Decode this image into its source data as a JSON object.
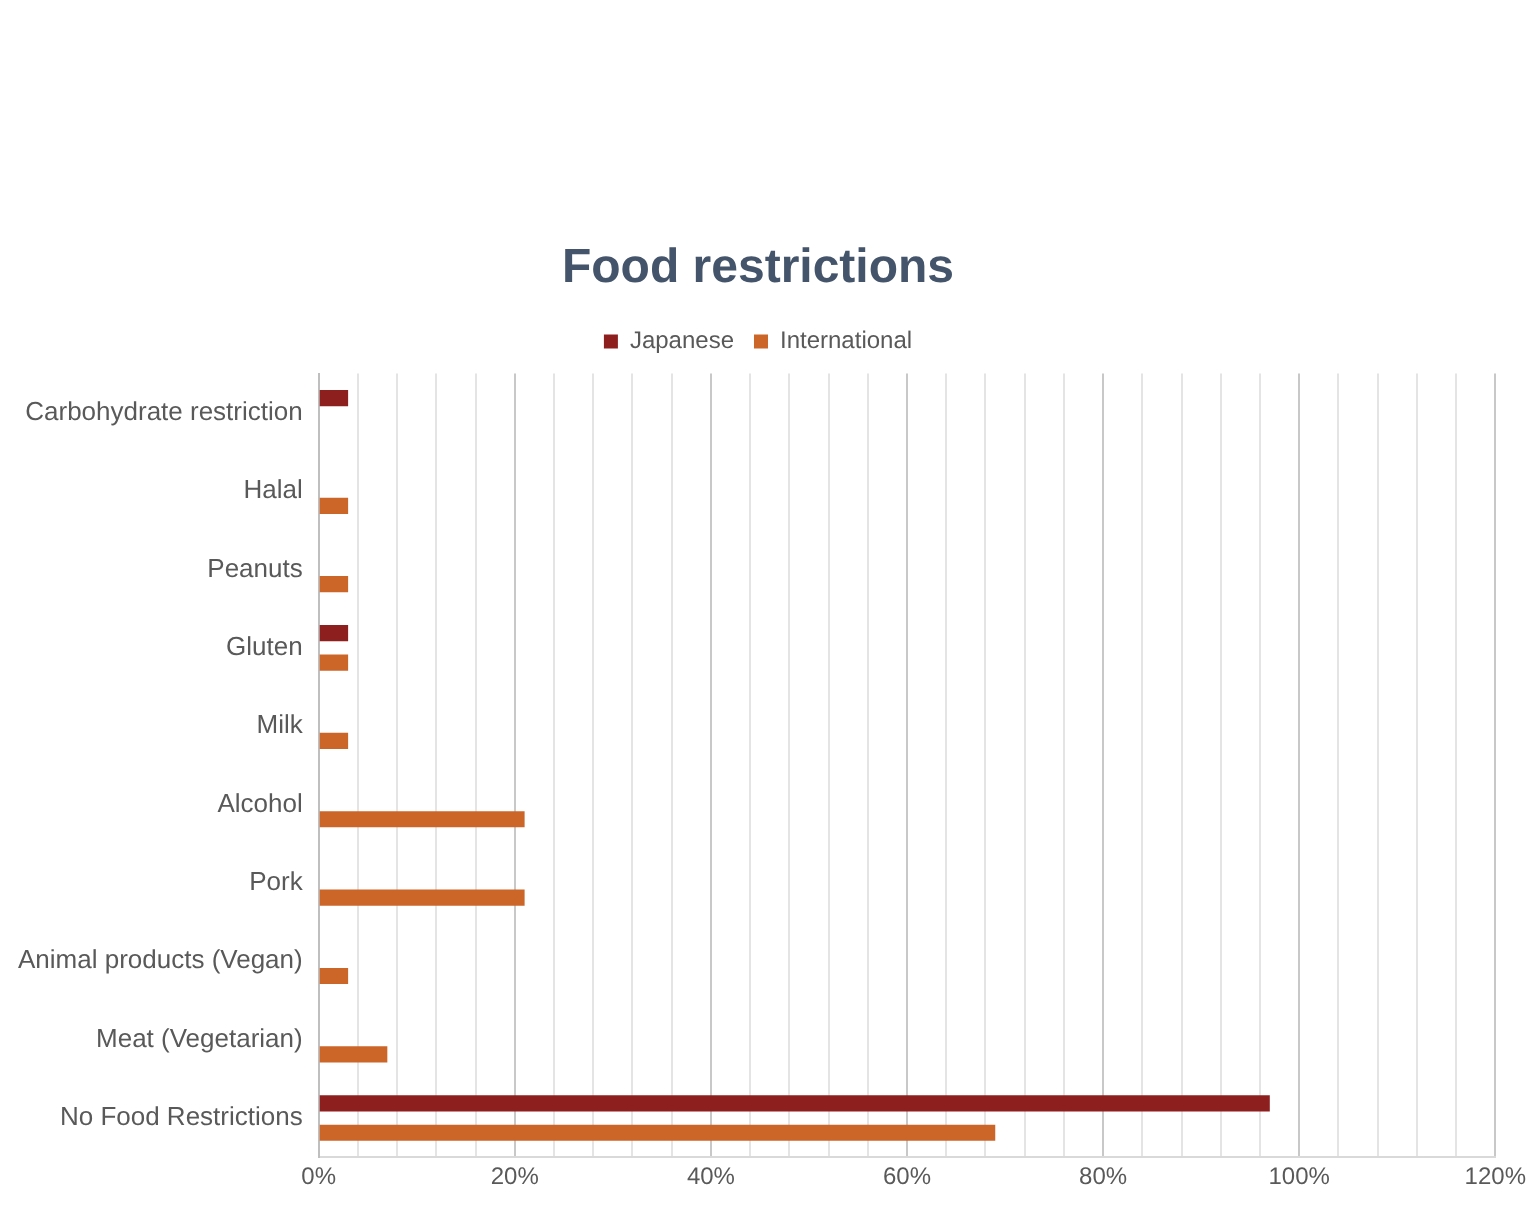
{
  "chart_data": {
    "type": "bar",
    "orientation": "horizontal",
    "title": "Food restrictions",
    "categories": [
      "Carbohydrate restriction",
      "Halal",
      "Peanuts",
      "Gluten",
      "Milk",
      "Alcohol",
      "Pork",
      "Animal products (Vegan)",
      "Meat (Vegetarian)",
      "No Food Restrictions"
    ],
    "series": [
      {
        "name": "Japanese",
        "color": "#8e1f1f",
        "values": [
          3,
          null,
          null,
          3,
          null,
          null,
          null,
          null,
          null,
          97
        ]
      },
      {
        "name": "International",
        "color": "#cc6628",
        "values": [
          null,
          3,
          3,
          3,
          3,
          21,
          21,
          3,
          7,
          69
        ]
      }
    ],
    "xlim": [
      0,
      120
    ],
    "xticks": [
      {
        "value": 0,
        "label": "0%"
      },
      {
        "value": 4,
        "label": null
      },
      {
        "value": 8,
        "label": null
      },
      {
        "value": 12,
        "label": null
      },
      {
        "value": 16,
        "label": null
      },
      {
        "value": 20,
        "label": "20%"
      },
      {
        "value": 24,
        "label": null
      },
      {
        "value": 28,
        "label": null
      },
      {
        "value": 32,
        "label": null
      },
      {
        "value": 36,
        "label": null
      },
      {
        "value": 40,
        "label": "40%"
      },
      {
        "value": 44,
        "label": null
      },
      {
        "value": 48,
        "label": null
      },
      {
        "value": 52,
        "label": null
      },
      {
        "value": 56,
        "label": null
      },
      {
        "value": 60,
        "label": "60%"
      },
      {
        "value": 64,
        "label": null
      },
      {
        "value": 68,
        "label": null
      },
      {
        "value": 72,
        "label": null
      },
      {
        "value": 76,
        "label": null
      },
      {
        "value": 80,
        "label": "80%"
      },
      {
        "value": 84,
        "label": null
      },
      {
        "value": 88,
        "label": null
      },
      {
        "value": 92,
        "label": null
      },
      {
        "value": 96,
        "label": null
      },
      {
        "value": 100,
        "label": "100%"
      },
      {
        "value": 104,
        "label": null
      },
      {
        "value": 108,
        "label": null
      },
      {
        "value": 112,
        "label": null
      },
      {
        "value": 116,
        "label": null
      },
      {
        "value": 120,
        "label": "120%"
      }
    ],
    "grid": "x",
    "legend": "top"
  }
}
